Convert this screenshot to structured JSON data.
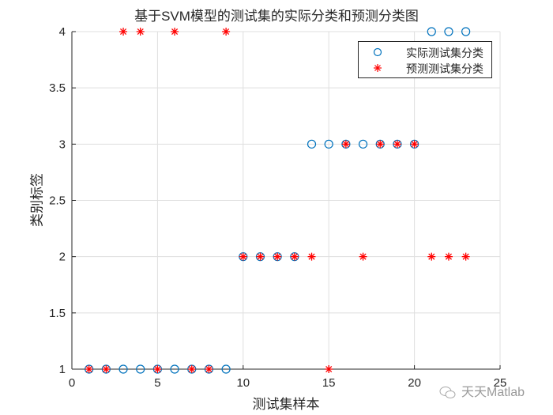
{
  "figure": {
    "title": "基于SVM模型的测试集的实际分类和预测分类图",
    "xlabel": "测试集样本",
    "ylabel": "类别标签",
    "watermark": "天天Matlab"
  },
  "legend": {
    "items": [
      {
        "label": "实际测试集分类",
        "marker": "circle",
        "color": "#0072BD"
      },
      {
        "label": "预测测试集分类",
        "marker": "asterisk",
        "color": "#FF0000"
      }
    ]
  },
  "chart_data": {
    "type": "scatter",
    "title": "基于SVM模型的测试集的实际分类和预测分类图",
    "xlabel": "测试集样本",
    "ylabel": "类别标签",
    "xlim": [
      0,
      25
    ],
    "ylim": [
      1,
      4
    ],
    "xticks": [
      0,
      5,
      10,
      15,
      20,
      25
    ],
    "yticks": [
      1,
      1.5,
      2,
      2.5,
      3,
      3.5,
      4
    ],
    "grid": true,
    "legend_position": "northeast",
    "x": [
      1,
      2,
      3,
      4,
      5,
      6,
      7,
      8,
      9,
      10,
      11,
      12,
      13,
      14,
      15,
      16,
      17,
      18,
      19,
      20,
      21,
      22,
      23
    ],
    "series": [
      {
        "name": "实际测试集分类",
        "marker": "o",
        "color": "#0072BD",
        "values": [
          1,
          1,
          1,
          1,
          1,
          1,
          1,
          1,
          1,
          2,
          2,
          2,
          2,
          3,
          3,
          3,
          3,
          3,
          3,
          3,
          4,
          4,
          4
        ]
      },
      {
        "name": "预测测试集分类",
        "marker": "*",
        "color": "#FF0000",
        "values": [
          1,
          1,
          4,
          4,
          1,
          4,
          1,
          1,
          4,
          2,
          2,
          2,
          2,
          2,
          1,
          3,
          2,
          3,
          3,
          3,
          2,
          2,
          2
        ]
      }
    ]
  }
}
